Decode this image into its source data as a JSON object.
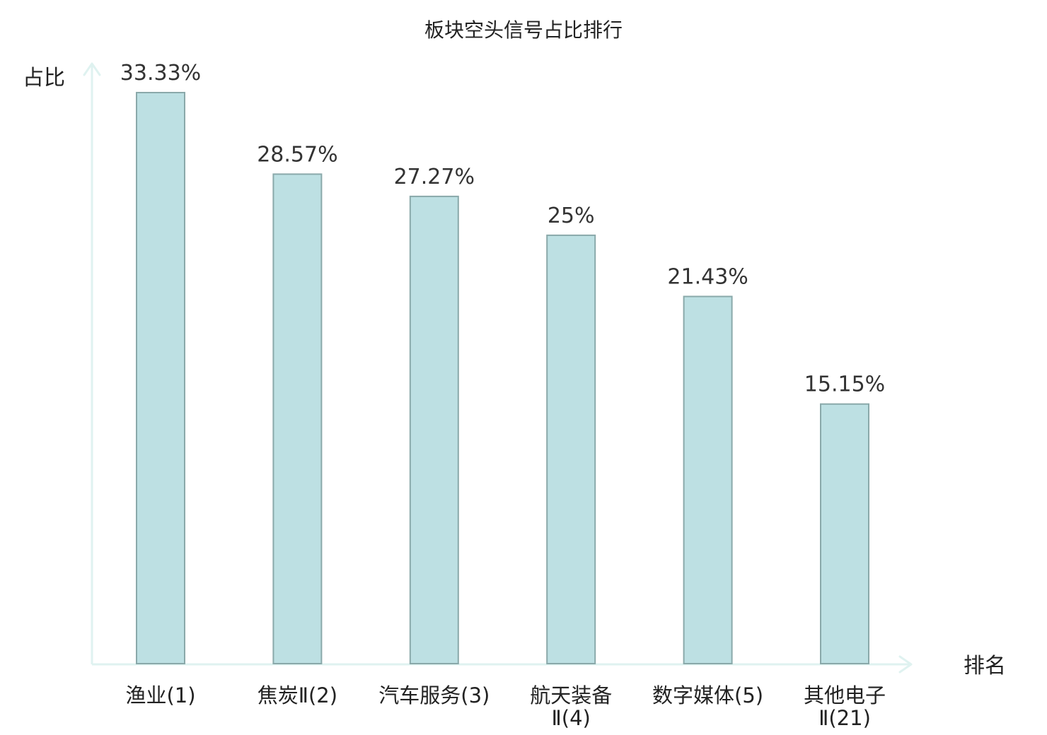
{
  "chart_data": {
    "type": "bar",
    "title": "板块空头信号占比排行",
    "xlabel": "排名",
    "ylabel": "占比",
    "ylim": [
      0,
      35
    ],
    "grid": false,
    "legend": "none",
    "categories": [
      [
        "渔业(1)"
      ],
      [
        "焦炭Ⅱ(2)"
      ],
      [
        "汽车服务(3)"
      ],
      [
        "航天装备",
        "Ⅱ(4)"
      ],
      [
        "数字媒体(5)"
      ],
      [
        "其他电子",
        "Ⅱ(21)"
      ]
    ],
    "values": [
      33.33,
      28.57,
      27.27,
      25,
      21.43,
      15.15
    ],
    "value_labels": [
      "33.33%",
      "28.57%",
      "27.27%",
      "25%",
      "21.43%",
      "15.15%"
    ],
    "highlight_index": 5,
    "colors": {
      "bar_fill": "#bde0e3",
      "bar_stroke": "#8aa9aa",
      "axis": "#dff2f0",
      "text": "#222222",
      "value_text": "#333333",
      "highlight_text": "#e01010"
    }
  }
}
